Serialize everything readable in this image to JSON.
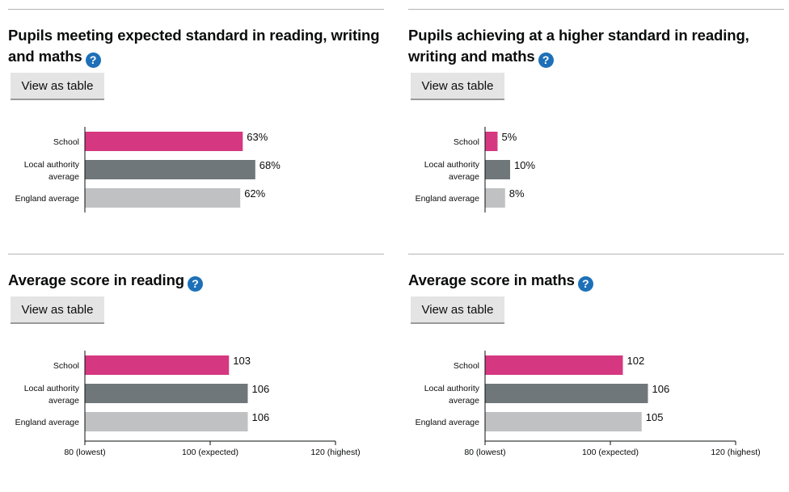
{
  "panels": [
    {
      "title": "Pupils meeting expected standard in reading, writing and maths",
      "help_icon": "?",
      "table_button": "View as table"
    },
    {
      "title": "Pupils achieving at a higher standard in reading, writing and maths",
      "help_icon": "?",
      "table_button": "View as table"
    },
    {
      "title": "Average score in reading",
      "help_icon": "?",
      "table_button": "View as table"
    },
    {
      "title": "Average score in maths",
      "help_icon": "?",
      "table_button": "View as table"
    }
  ],
  "colors": {
    "school": "#d53880",
    "local_authority": "#6f777b",
    "england": "#bfc1c3",
    "help_icon": "#1d70b8"
  },
  "chart_data": [
    {
      "type": "bar",
      "orientation": "horizontal",
      "categories": [
        [
          "School"
        ],
        [
          "Local authority",
          "average"
        ],
        [
          "England average"
        ]
      ],
      "values": [
        63,
        68,
        62
      ],
      "value_labels": [
        "63%",
        "68%",
        "62%"
      ],
      "xlim": [
        0,
        100
      ]
    },
    {
      "type": "bar",
      "orientation": "horizontal",
      "categories": [
        [
          "School"
        ],
        [
          "Local authority",
          "average"
        ],
        [
          "England average"
        ]
      ],
      "values": [
        5,
        10,
        8
      ],
      "value_labels": [
        "5%",
        "10%",
        "8%"
      ],
      "xlim": [
        0,
        100
      ]
    },
    {
      "type": "bar",
      "orientation": "horizontal",
      "categories": [
        [
          "School"
        ],
        [
          "Local authority",
          "average"
        ],
        [
          "England average"
        ]
      ],
      "values": [
        103,
        106,
        106
      ],
      "value_labels": [
        "103",
        "106",
        "106"
      ],
      "xlim": [
        80,
        120
      ],
      "xticks": [
        80,
        100,
        120
      ],
      "xtick_labels": [
        "80 (lowest)",
        "100 (expected)",
        "120 (highest)"
      ]
    },
    {
      "type": "bar",
      "orientation": "horizontal",
      "categories": [
        [
          "School"
        ],
        [
          "Local authority",
          "average"
        ],
        [
          "England average"
        ]
      ],
      "values": [
        102,
        106,
        105
      ],
      "value_labels": [
        "102",
        "106",
        "105"
      ],
      "xlim": [
        80,
        120
      ],
      "xticks": [
        80,
        100,
        120
      ],
      "xtick_labels": [
        "80 (lowest)",
        "100 (expected)",
        "120 (highest)"
      ]
    }
  ]
}
